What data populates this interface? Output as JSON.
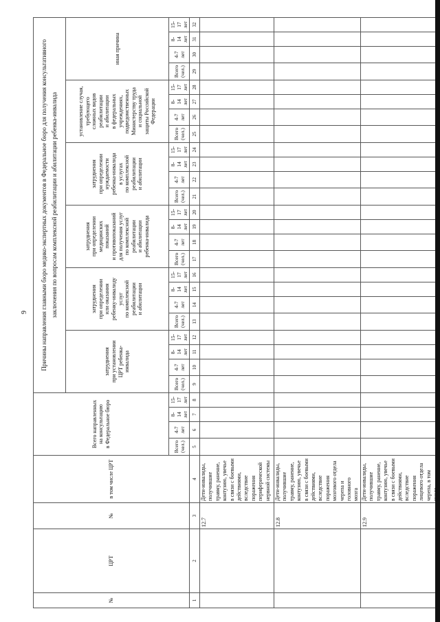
{
  "page_number": "9",
  "title": "Причины направления главными бюро медико-экспертных документов в Федеральное бюро для получения консультативного\nзаключения по вопросам комплексной реабилитации и абилитации ребенка-инвалида",
  "fixed_headers": [
    "№",
    "ЦРТ",
    "№",
    "в том числе ЦРТ"
  ],
  "groups": [
    "Всего направленных\nна консультацию\nв Федеральное бюро",
    "затруднения\nпри установлении\nЦРТ ребенка-\nинвалида",
    "затруднения\nпри определении\nили оказания\nребенку-инвалиду\nуслуг\nпо комплексной\nреабилитации\nи абилитации",
    "затруднения\nпри определении\nмедицинских\nпоказаний\nи противопоказаний\nдля получения услуг\nпо комплексной\nреабилитации\nи абилитации\nребенка-инвалида",
    "затруднения\nпри определении\nнуждаемости\nребенка-инвалида\nв услугах\nпо комплексной\nреабилитации\nи абилитации",
    "установление случая,\nтребующего\nсложных видов\nреабилитации\nи абилитации\nв федеральных\nучреждениях,\nподведомственных\nМинистерству труда\nи социальной\nзащиты Российской\nФедерации",
    "иная причина"
  ],
  "age_labels": [
    "Всего\n(чел.)",
    "4-7\nлет",
    "8-\n14\nлет",
    "15-\n17\nлет"
  ],
  "column_numbers": [
    "1",
    "2",
    "3",
    "4",
    "5",
    "6",
    "7",
    "8",
    "9",
    "10",
    "11",
    "12",
    "13",
    "14",
    "15",
    "16",
    "17",
    "18",
    "19",
    "20",
    "21",
    "22",
    "23",
    "24",
    "25",
    "26",
    "27",
    "28",
    "29",
    "30",
    "31",
    "32"
  ],
  "rows": [
    {
      "code": "12.7",
      "text": "Дети-инвалиды,\nполучившие\nтравму, ранение,\nконтузию, увечье\nв связи с боевыми\nдействиями,\nвследствие\nпоражения\nпериферической\nнервной системы"
    },
    {
      "code": "12.8",
      "text": "Дети-инвалиды,\nполучившие\nтравму, ранение,\nконтузию, увечье\nв связи с боевыми\nдействиями,\nвследствие\nпоражения\nмозгового отдела\nчерепа и головного\nмозга"
    },
    {
      "code": "12.9",
      "text": "Дети-инвалиды,\nполучившие\nтравму, ранение,\nконтузию, увечье\nв связи с боевыми\nдействиями,\nвследствие\nпоражения\nлицевого отдела\nчерепа, в том числе\nс одновременным"
    }
  ]
}
